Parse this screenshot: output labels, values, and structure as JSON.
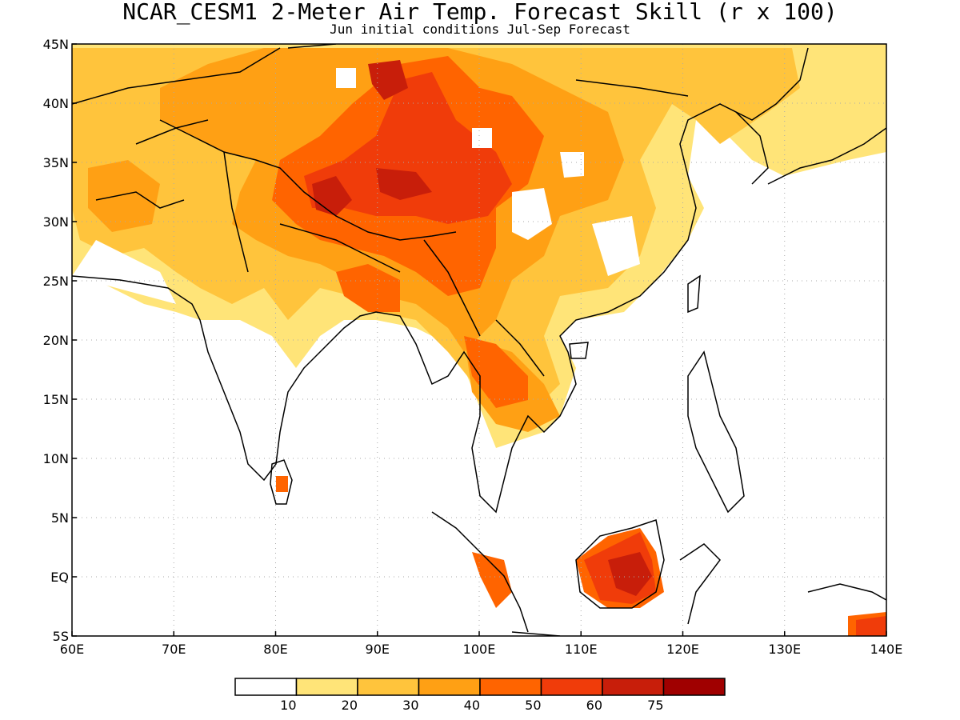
{
  "title": "NCAR_CESM1 2-Meter Air Temp. Forecast Skill (r x 100)",
  "subtitle": "Jun initial conditions  Jul-Sep Forecast",
  "lon_ticks": [
    "60E",
    "70E",
    "80E",
    "90E",
    "100E",
    "110E",
    "120E",
    "130E",
    "140E"
  ],
  "lat_ticks": [
    "45N",
    "40N",
    "35N",
    "30N",
    "25N",
    "20N",
    "15N",
    "10N",
    "5N",
    "EQ",
    "5S"
  ],
  "colorbar": {
    "colors": [
      "#ffffff",
      "#ffe478",
      "#ffc43c",
      "#ffa014",
      "#ff6400",
      "#f03c0a",
      "#c81e0a",
      "#a00000"
    ],
    "labels": [
      "10",
      "20",
      "30",
      "40",
      "50",
      "60",
      "75"
    ]
  },
  "colors": {
    "land_line": "#000000",
    "grid": "#aaaaaa"
  }
}
